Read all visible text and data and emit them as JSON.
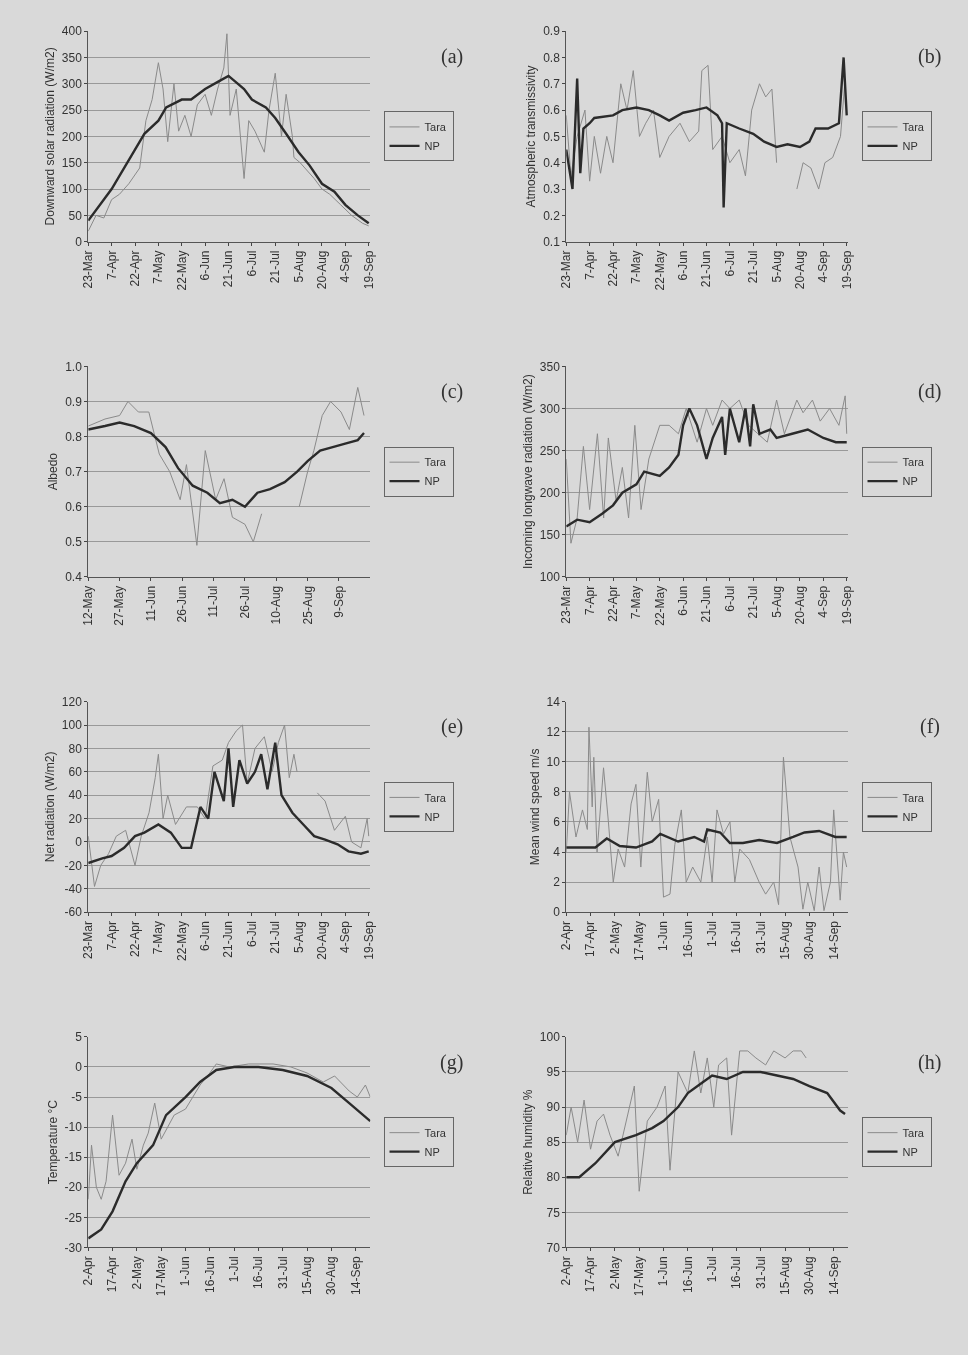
{
  "chart_data": [
    {
      "type": "line",
      "ylabel": "Downward solar radiation (W/m2)",
      "annotations": [
        "(a)"
      ],
      "legend": "right",
      "grid": "y",
      "xlim": [
        "--03-23",
        "--09-20"
      ],
      "ylim": [
        0,
        400
      ],
      "yticks": [
        0,
        50,
        100,
        150,
        200,
        250,
        300,
        350,
        400
      ],
      "xticks": [
        {
          "value": "--03-23",
          "label": "23-Mar"
        },
        {
          "value": "--04-07",
          "label": "7-Apr"
        },
        {
          "value": "--04-22",
          "label": "22-Apr"
        },
        {
          "value": "--05-07",
          "label": "7-May"
        },
        {
          "value": "--05-22",
          "label": "22-May"
        },
        {
          "value": "--06-06",
          "label": "6-Jun"
        },
        {
          "value": "--06-21",
          "label": "21-Jun"
        },
        {
          "value": "--07-06",
          "label": "6-Jul"
        },
        {
          "value": "--07-21",
          "label": "21-Jul"
        },
        {
          "value": "--08-05",
          "label": "5-Aug"
        },
        {
          "value": "--08-20",
          "label": "20-Aug"
        },
        {
          "value": "--09-04",
          "label": "4-Sep"
        },
        {
          "value": "--09-19",
          "label": "19-Sep"
        }
      ],
      "series": [
        {
          "name": "Tara",
          "color": "#8a8a8a",
          "x": [
            "--03-23",
            "--03-28",
            "--04-02",
            "--04-07",
            "--04-12",
            "--04-18",
            "--04-25",
            "--04-29",
            "--05-03",
            "--05-07",
            "--05-10",
            "--05-13",
            "--05-17",
            "--05-20",
            "--05-24",
            "--05-28",
            "--06-01",
            "--06-06",
            "--06-10",
            "--06-14",
            "--06-18",
            "--06-20",
            "--06-22",
            "--06-26",
            "--07-01",
            "--07-04",
            "--07-08",
            "--07-14",
            "--07-17",
            "--07-21",
            "--07-25",
            "--07-28",
            "--08-01",
            "--08-02",
            "--08-06",
            "--08-15",
            "--08-20",
            "--08-25",
            "--09-01",
            "--09-08",
            "--09-15",
            "--09-19"
          ],
          "values": [
            20,
            50,
            45,
            80,
            90,
            110,
            140,
            230,
            270,
            340,
            290,
            190,
            300,
            210,
            240,
            200,
            260,
            280,
            240,
            290,
            330,
            395,
            240,
            290,
            120,
            230,
            210,
            170,
            250,
            320,
            200,
            280,
            200,
            160,
            150,
            120,
            100,
            90,
            70,
            50,
            35,
            30
          ]
        },
        {
          "name": "NP",
          "color": "#2b2b2b",
          "x": [
            "--03-23",
            "--04-07",
            "--04-22",
            "--04-28",
            "--05-07",
            "--05-12",
            "--05-22",
            "--05-28",
            "--06-06",
            "--06-15",
            "--06-21",
            "--06-25",
            "--07-01",
            "--07-06",
            "--07-15",
            "--07-21",
            "--07-28",
            "--08-05",
            "--08-12",
            "--08-20",
            "--08-28",
            "--09-04",
            "--09-12",
            "--09-19"
          ],
          "values": [
            40,
            100,
            175,
            205,
            230,
            255,
            270,
            270,
            290,
            305,
            315,
            305,
            290,
            270,
            255,
            235,
            205,
            170,
            145,
            110,
            95,
            70,
            50,
            35
          ]
        }
      ]
    },
    {
      "type": "line",
      "ylabel": "Atmospheric transmissivity",
      "annotations": [
        "(b)"
      ],
      "legend": "right",
      "grid": false,
      "xlim": [
        "--03-23",
        "--09-20"
      ],
      "ylim": [
        0.1,
        0.9
      ],
      "yticks": [
        0.1,
        0.2,
        0.3,
        0.4,
        0.5,
        0.6,
        0.7,
        0.8,
        0.9
      ],
      "xticks": [
        {
          "value": "--03-23",
          "label": "23-Mar"
        },
        {
          "value": "--04-07",
          "label": "7-Apr"
        },
        {
          "value": "--04-22",
          "label": "22-Apr"
        },
        {
          "value": "--05-07",
          "label": "7-May"
        },
        {
          "value": "--05-22",
          "label": "22-May"
        },
        {
          "value": "--06-06",
          "label": "6-Jun"
        },
        {
          "value": "--06-21",
          "label": "21-Jun"
        },
        {
          "value": "--07-06",
          "label": "6-Jul"
        },
        {
          "value": "--07-21",
          "label": "21-Jul"
        },
        {
          "value": "--08-05",
          "label": "5-Aug"
        },
        {
          "value": "--08-20",
          "label": "20-Aug"
        },
        {
          "value": "--09-04",
          "label": "4-Sep"
        },
        {
          "value": "--09-19",
          "label": "19-Sep"
        }
      ],
      "series": [
        {
          "name": "Tara",
          "color": "#8a8a8a",
          "x": [
            "--03-23",
            "--03-26",
            "--03-30",
            "--04-04",
            "--04-07",
            "--04-10",
            "--04-14",
            "--04-18",
            "--04-22",
            "--04-27",
            "--05-01",
            "--05-05",
            "--05-09",
            "--05-13",
            "--05-18",
            "--05-22",
            "--05-28",
            "--06-04",
            "--06-10",
            "--06-16",
            "--06-18",
            "--06-22",
            "--06-25",
            "--07-01",
            "--07-06",
            "--07-12",
            "--07-16",
            "--07-20",
            "--07-25",
            "--07-29",
            "--08-02",
            "--08-05",
            "--08-10",
            "--08-18",
            "--08-22",
            "--08-27",
            "--09-01",
            "--09-05",
            "--09-10",
            "--09-15",
            "--09-18"
          ],
          "values": [
            0.58,
            0.35,
            0.5,
            0.6,
            0.33,
            0.5,
            0.36,
            0.5,
            0.4,
            0.7,
            0.6,
            0.75,
            0.5,
            0.55,
            0.6,
            0.42,
            0.5,
            0.55,
            0.48,
            0.52,
            0.75,
            0.77,
            0.45,
            0.5,
            0.4,
            0.45,
            0.35,
            0.6,
            0.7,
            0.65,
            0.68,
            0.4,
            null,
            0.3,
            0.4,
            0.38,
            0.3,
            0.4,
            0.42,
            0.5,
            0.72
          ]
        },
        {
          "name": "NP",
          "color": "#2b2b2b",
          "x": [
            "--03-23",
            "--03-27",
            "--03-30",
            "--04-01",
            "--04-03",
            "--04-07",
            "--04-10",
            "--04-22",
            "--04-28",
            "--05-07",
            "--05-15",
            "--05-22",
            "--05-28",
            "--06-06",
            "--06-14",
            "--06-21",
            "--06-28",
            "--07-01",
            "--07-02",
            "--07-04",
            "--07-12",
            "--07-21",
            "--07-28",
            "--08-05",
            "--08-12",
            "--08-20",
            "--08-26",
            "--08-30",
            "--09-07",
            "--09-14",
            "--09-17",
            "--09-19"
          ],
          "values": [
            0.45,
            0.3,
            0.72,
            0.36,
            0.53,
            0.55,
            0.57,
            0.58,
            0.6,
            0.61,
            0.6,
            0.58,
            0.56,
            0.59,
            0.6,
            0.61,
            0.58,
            0.55,
            0.23,
            0.55,
            0.53,
            0.51,
            0.48,
            0.46,
            0.47,
            0.46,
            0.48,
            0.53,
            0.53,
            0.55,
            0.8,
            0.58
          ]
        }
      ]
    },
    {
      "type": "line",
      "ylabel": "Albedo",
      "annotations": [
        "(c)"
      ],
      "legend": "right",
      "grid": "y",
      "xlim": [
        "--05-12",
        "--09-24"
      ],
      "ylim": [
        0.4,
        1.0
      ],
      "yticks": [
        0.4,
        0.5,
        0.6,
        0.7,
        0.8,
        0.9,
        {
          "value": 1.0,
          "label": "1.0"
        }
      ],
      "xticks": [
        {
          "value": "--05-12",
          "label": "12-May"
        },
        {
          "value": "--05-27",
          "label": "27-May"
        },
        {
          "value": "--06-11",
          "label": "11-Jun"
        },
        {
          "value": "--06-26",
          "label": "26-Jun"
        },
        {
          "value": "--07-11",
          "label": "11-Jul"
        },
        {
          "value": "--07-26",
          "label": "26-Jul"
        },
        {
          "value": "--08-10",
          "label": "10-Aug"
        },
        {
          "value": "--08-25",
          "label": "25-Aug"
        },
        {
          "value": "--09-09",
          "label": "9-Sep"
        }
      ],
      "series": [
        {
          "name": "Tara",
          "color": "#8a8a8a",
          "x": [
            "--05-12",
            "--05-20",
            "--05-27",
            "--05-31",
            "--06-05",
            "--06-10",
            "--06-15",
            "--06-20",
            "--06-25",
            "--06-28",
            "--07-03",
            "--07-07",
            "--07-12",
            "--07-16",
            "--07-20",
            "--07-26",
            "--07-30",
            "--08-03",
            "--08-10",
            "--08-21",
            "--08-25",
            "--08-28",
            "--09-01",
            "--09-05",
            "--09-10",
            "--09-14",
            "--09-18",
            "--09-21"
          ],
          "values": [
            0.83,
            0.85,
            0.86,
            0.9,
            0.87,
            0.87,
            0.75,
            0.7,
            0.62,
            0.72,
            0.49,
            0.76,
            0.62,
            0.68,
            0.57,
            0.55,
            0.5,
            0.58,
            null,
            0.6,
            0.7,
            0.76,
            0.86,
            0.9,
            0.87,
            0.82,
            0.94,
            0.86
          ]
        },
        {
          "name": "NP",
          "color": "#2b2b2b",
          "x": [
            "--05-12",
            "--05-20",
            "--05-27",
            "--06-03",
            "--06-11",
            "--06-18",
            "--06-24",
            "--07-01",
            "--07-08",
            "--07-14",
            "--07-20",
            "--07-26",
            "--08-01",
            "--08-07",
            "--08-14",
            "--08-20",
            "--08-25",
            "--08-31",
            "--09-06",
            "--09-12",
            "--09-18",
            "--09-21"
          ],
          "values": [
            0.82,
            0.83,
            0.84,
            0.83,
            0.81,
            0.77,
            0.71,
            0.66,
            0.64,
            0.61,
            0.62,
            0.6,
            0.64,
            0.65,
            0.67,
            0.7,
            0.73,
            0.76,
            0.77,
            0.78,
            0.79,
            0.81
          ]
        }
      ]
    },
    {
      "type": "line",
      "ylabel": "Incoming longwave radiation (W/m2)",
      "annotations": [
        "(d)"
      ],
      "legend": "right",
      "grid": "y",
      "xlim": [
        "--03-23",
        "--09-20"
      ],
      "ylim": [
        100,
        350
      ],
      "yticks": [
        100,
        150,
        200,
        250,
        300,
        350
      ],
      "xticks": [
        {
          "value": "--03-23",
          "label": "23-Mar"
        },
        {
          "value": "--04-07",
          "label": "7-Apr"
        },
        {
          "value": "--04-22",
          "label": "22-Apr"
        },
        {
          "value": "--05-07",
          "label": "7-May"
        },
        {
          "value": "--05-22",
          "label": "22-May"
        },
        {
          "value": "--06-06",
          "label": "6-Jun"
        },
        {
          "value": "--06-21",
          "label": "21-Jun"
        },
        {
          "value": "--07-06",
          "label": "6-Jul"
        },
        {
          "value": "--07-21",
          "label": "21-Jul"
        },
        {
          "value": "--08-05",
          "label": "5-Aug"
        },
        {
          "value": "--08-20",
          "label": "20-Aug"
        },
        {
          "value": "--09-04",
          "label": "4-Sep"
        },
        {
          "value": "--09-19",
          "label": "19-Sep"
        }
      ],
      "series": [
        {
          "name": "Tara",
          "color": "#8a8a8a",
          "x": [
            "--03-23",
            "--03-26",
            "--03-30",
            "--04-03",
            "--04-07",
            "--04-12",
            "--04-16",
            "--04-19",
            "--04-24",
            "--04-28",
            "--05-02",
            "--05-06",
            "--05-10",
            "--05-15",
            "--05-22",
            "--05-28",
            "--06-03",
            "--06-08",
            "--06-15",
            "--06-21",
            "--06-25",
            "--07-01",
            "--07-06",
            "--07-12",
            "--07-18",
            "--07-24",
            "--07-30",
            "--08-05",
            "--08-10",
            "--08-18",
            "--08-22",
            "--08-28",
            "--09-02",
            "--09-08",
            "--09-14",
            "--09-18",
            "--09-19"
          ],
          "values": [
            240,
            140,
            170,
            255,
            180,
            270,
            170,
            265,
            190,
            230,
            170,
            280,
            180,
            240,
            280,
            280,
            270,
            300,
            260,
            300,
            280,
            310,
            300,
            310,
            280,
            270,
            260,
            310,
            270,
            310,
            295,
            310,
            285,
            300,
            280,
            315,
            270
          ]
        },
        {
          "name": "NP",
          "color": "#2b2b2b",
          "x": [
            "--03-23",
            "--03-30",
            "--04-07",
            "--04-15",
            "--04-22",
            "--04-28",
            "--05-07",
            "--05-12",
            "--05-22",
            "--05-28",
            "--06-03",
            "--06-06",
            "--06-10",
            "--06-15",
            "--06-21",
            "--06-25",
            "--07-01",
            "--07-03",
            "--07-06",
            "--07-12",
            "--07-16",
            "--07-19",
            "--07-21",
            "--07-25",
            "--08-01",
            "--08-05",
            "--08-15",
            "--08-25",
            "--09-04",
            "--09-12",
            "--09-19"
          ],
          "values": [
            160,
            168,
            165,
            175,
            185,
            200,
            210,
            225,
            220,
            230,
            245,
            280,
            300,
            280,
            240,
            265,
            290,
            245,
            300,
            260,
            300,
            255,
            305,
            270,
            275,
            265,
            270,
            275,
            265,
            260,
            260
          ]
        }
      ]
    },
    {
      "type": "line",
      "ylabel": "Net radiation (W/m2)",
      "annotations": [
        "(e)"
      ],
      "legend": "right",
      "grid": "y",
      "xlim": [
        "--03-23",
        "--09-20"
      ],
      "ylim": [
        -60,
        120
      ],
      "yticks": [
        -60,
        -40,
        -20,
        0,
        20,
        40,
        60,
        80,
        100,
        120
      ],
      "xticks": [
        {
          "value": "--03-23",
          "label": "23-Mar"
        },
        {
          "value": "--04-07",
          "label": "7-Apr"
        },
        {
          "value": "--04-22",
          "label": "22-Apr"
        },
        {
          "value": "--05-07",
          "label": "7-May"
        },
        {
          "value": "--05-22",
          "label": "22-May"
        },
        {
          "value": "--06-06",
          "label": "6-Jun"
        },
        {
          "value": "--06-21",
          "label": "21-Jun"
        },
        {
          "value": "--07-06",
          "label": "6-Jul"
        },
        {
          "value": "--07-21",
          "label": "21-Jul"
        },
        {
          "value": "--08-05",
          "label": "5-Aug"
        },
        {
          "value": "--08-20",
          "label": "20-Aug"
        },
        {
          "value": "--09-04",
          "label": "4-Sep"
        },
        {
          "value": "--09-19",
          "label": "19-Sep"
        }
      ],
      "series": [
        {
          "name": "Tara",
          "color": "#8a8a8a",
          "x": [
            "--03-23",
            "--03-27",
            "--03-31",
            "--04-05",
            "--04-10",
            "--04-16",
            "--04-22",
            "--04-26",
            "--05-01",
            "--05-05",
            "--05-07",
            "--05-10",
            "--05-13",
            "--05-18",
            "--05-25",
            "--06-01",
            "--06-06",
            "--06-11",
            "--06-17",
            "--06-21",
            "--06-26",
            "--06-30",
            "--07-03",
            "--07-08",
            "--07-14",
            "--07-19",
            "--07-23",
            "--07-27",
            "--07-30",
            "--08-02",
            "--08-04",
            "--08-10",
            "--08-17",
            "--08-22",
            "--08-28",
            "--09-04",
            "--09-08",
            "--09-14",
            "--09-18",
            "--09-19"
          ],
          "values": [
            5,
            -38,
            -20,
            -10,
            5,
            10,
            -20,
            5,
            25,
            55,
            75,
            20,
            40,
            15,
            30,
            30,
            20,
            65,
            70,
            85,
            95,
            100,
            50,
            80,
            90,
            60,
            85,
            100,
            55,
            75,
            60,
            null,
            42,
            35,
            10,
            22,
            0,
            -5,
            20,
            5
          ]
        },
        {
          "name": "NP",
          "color": "#2b2b2b",
          "x": [
            "--03-23",
            "--04-01",
            "--04-07",
            "--04-15",
            "--04-22",
            "--04-28",
            "--05-07",
            "--05-15",
            "--05-22",
            "--05-28",
            "--06-03",
            "--06-08",
            "--06-12",
            "--06-18",
            "--06-21",
            "--06-24",
            "--06-28",
            "--07-03",
            "--07-08",
            "--07-12",
            "--07-16",
            "--07-21",
            "--07-25",
            "--08-01",
            "--08-08",
            "--08-15",
            "--08-22",
            "--08-30",
            "--09-06",
            "--09-14",
            "--09-19"
          ],
          "values": [
            -18,
            -14,
            -12,
            -5,
            5,
            8,
            15,
            8,
            -5,
            -5,
            30,
            20,
            60,
            35,
            80,
            30,
            70,
            50,
            60,
            75,
            45,
            85,
            40,
            25,
            15,
            5,
            2,
            -2,
            -8,
            -10,
            -8
          ]
        }
      ]
    },
    {
      "type": "line",
      "ylabel": "Mean wind speed m/s",
      "annotations": [
        "(f)"
      ],
      "legend": "right",
      "grid": "y",
      "xlim": [
        "--04-02",
        "--09-23"
      ],
      "ylim": [
        0,
        14
      ],
      "yticks": [
        0,
        2,
        4,
        6,
        8,
        10,
        12,
        14
      ],
      "xticks": [
        {
          "value": "--04-02",
          "label": "2-Apr"
        },
        {
          "value": "--04-17",
          "label": "17-Apr"
        },
        {
          "value": "--05-02",
          "label": "2-May"
        },
        {
          "value": "--05-17",
          "label": "17-May"
        },
        {
          "value": "--06-01",
          "label": "1-Jun"
        },
        {
          "value": "--06-16",
          "label": "16-Jun"
        },
        {
          "value": "--07-01",
          "label": "1-Jul"
        },
        {
          "value": "--07-16",
          "label": "16-Jul"
        },
        {
          "value": "--07-31",
          "label": "31-Jul"
        },
        {
          "value": "--08-15",
          "label": "15-Aug"
        },
        {
          "value": "--08-30",
          "label": "30-Aug"
        },
        {
          "value": "--09-14",
          "label": "14-Sep"
        }
      ],
      "series": [
        {
          "name": "Tara",
          "color": "#8a8a8a",
          "x": [
            "--04-02",
            "--04-04",
            "--04-08",
            "--04-12",
            "--04-15",
            "--04-16",
            "--04-18",
            "--04-19",
            "--04-21",
            "--04-25",
            "--04-28",
            "--05-01",
            "--05-04",
            "--05-08",
            "--05-12",
            "--05-15",
            "--05-18",
            "--05-22",
            "--05-25",
            "--05-29",
            "--06-01",
            "--06-05",
            "--06-08",
            "--06-12",
            "--06-15",
            "--06-19",
            "--06-24",
            "--06-28",
            "--07-01",
            "--07-04",
            "--07-08",
            "--07-12",
            "--07-15",
            "--07-18",
            "--07-24",
            "--07-30",
            "--08-03",
            "--08-08",
            "--08-11",
            "--08-14",
            "--08-18",
            "--08-23",
            "--08-26",
            "--08-29",
            "--09-02",
            "--09-05",
            "--09-08",
            "--09-12",
            "--09-14",
            "--09-18",
            "--09-20",
            "--09-22"
          ],
          "values": [
            4.0,
            8,
            5,
            6.8,
            5.5,
            12.3,
            7,
            10.3,
            4,
            9.6,
            6,
            2,
            4.2,
            3,
            7.2,
            8.5,
            3,
            9.3,
            6,
            7.5,
            1,
            1.2,
            4.5,
            6.8,
            2,
            3,
            2,
            5,
            2,
            6.8,
            5.2,
            6,
            2,
            4.2,
            3.5,
            2,
            1.2,
            2,
            0.5,
            10.3,
            5,
            3,
            0.2,
            2,
            0.1,
            3,
            0.1,
            2,
            6.8,
            0.8,
            4,
            3
          ]
        },
        {
          "name": "NP",
          "color": "#2b2b2b",
          "x": [
            "--04-02",
            "--04-20",
            "--04-27",
            "--05-05",
            "--05-15",
            "--05-25",
            "--05-30",
            "--06-10",
            "--06-20",
            "--06-26",
            "--06-28",
            "--07-06",
            "--07-12",
            "--07-20",
            "--07-30",
            "--08-10",
            "--08-20",
            "--08-27",
            "--09-05",
            "--09-15",
            "--09-22"
          ],
          "values": [
            4.3,
            4.3,
            4.9,
            4.4,
            4.3,
            4.7,
            5.2,
            4.7,
            5.0,
            4.7,
            5.5,
            5.3,
            4.6,
            4.6,
            4.8,
            4.6,
            5.0,
            5.3,
            5.4,
            5.0,
            5.0
          ]
        }
      ]
    },
    {
      "type": "line",
      "ylabel": "Temperature °C",
      "annotations": [
        "(g)"
      ],
      "legend": "right",
      "grid": "y",
      "xlim": [
        "--04-02",
        "--09-23"
      ],
      "ylim": [
        -30,
        5
      ],
      "yticks": [
        -30,
        -25,
        -20,
        -15,
        -10,
        -5,
        0,
        5
      ],
      "xticks": [
        {
          "value": "--04-02",
          "label": "2-Apr"
        },
        {
          "value": "--04-17",
          "label": "17-Apr"
        },
        {
          "value": "--05-02",
          "label": "2-May"
        },
        {
          "value": "--05-17",
          "label": "17-May"
        },
        {
          "value": "--06-01",
          "label": "1-Jun"
        },
        {
          "value": "--06-16",
          "label": "16-Jun"
        },
        {
          "value": "--07-01",
          "label": "1-Jul"
        },
        {
          "value": "--07-16",
          "label": "16-Jul"
        },
        {
          "value": "--07-31",
          "label": "31-Jul"
        },
        {
          "value": "--08-15",
          "label": "15-Aug"
        },
        {
          "value": "--08-30",
          "label": "30-Aug"
        },
        {
          "value": "--09-14",
          "label": "14-Sep"
        }
      ],
      "series": [
        {
          "name": "Tara",
          "color": "#8a8a8a",
          "x": [
            "--04-02",
            "--04-04",
            "--04-07",
            "--04-10",
            "--04-13",
            "--04-17",
            "--04-21",
            "--04-25",
            "--04-29",
            "--05-02",
            "--05-06",
            "--05-09",
            "--05-13",
            "--05-17",
            "--05-25",
            "--06-01",
            "--06-10",
            "--06-16",
            "--06-20",
            "--06-28",
            "--07-10",
            "--07-25",
            "--08-05",
            "--08-15",
            "--08-25",
            "--09-01",
            "--09-10",
            "--09-15",
            "--09-20",
            "--09-23"
          ],
          "values": [
            -22,
            -13,
            -20,
            -22,
            -19,
            -8,
            -18,
            -16,
            -12,
            -17,
            -13,
            -11,
            -6,
            -12,
            -8,
            -7,
            -3,
            -1,
            0.5,
            0,
            0.5,
            0.5,
            0,
            -1,
            -2.5,
            -1.5,
            -4,
            -5,
            -3,
            -5
          ]
        },
        {
          "name": "NP",
          "color": "#2b2b2b",
          "x": [
            "--04-02",
            "--04-10",
            "--04-17",
            "--04-25",
            "--05-02",
            "--05-12",
            "--05-20",
            "--06-01",
            "--06-10",
            "--06-20",
            "--07-01",
            "--07-16",
            "--07-31",
            "--08-15",
            "--08-30",
            "--09-10",
            "--09-23"
          ],
          "values": [
            -28.5,
            -27,
            -24,
            -19,
            -16,
            -13,
            -8,
            -5,
            -2.5,
            -0.5,
            0,
            0,
            -0.5,
            -1.5,
            -3.5,
            -6,
            -9
          ]
        }
      ]
    },
    {
      "type": "line",
      "ylabel": "Relative humidity %",
      "annotations": [
        "(h)"
      ],
      "legend": "right",
      "grid": "y",
      "xlim": [
        "--04-02",
        "--09-23"
      ],
      "ylim": [
        70,
        100
      ],
      "yticks": [
        70,
        75,
        80,
        85,
        90,
        95,
        100
      ],
      "xticks": [
        {
          "value": "--04-02",
          "label": "2-Apr"
        },
        {
          "value": "--04-17",
          "label": "17-Apr"
        },
        {
          "value": "--05-02",
          "label": "2-May"
        },
        {
          "value": "--05-17",
          "label": "17-May"
        },
        {
          "value": "--06-01",
          "label": "1-Jun"
        },
        {
          "value": "--06-16",
          "label": "16-Jun"
        },
        {
          "value": "--07-01",
          "label": "1-Jul"
        },
        {
          "value": "--07-16",
          "label": "16-Jul"
        },
        {
          "value": "--07-31",
          "label": "31-Jul"
        },
        {
          "value": "--08-15",
          "label": "15-Aug"
        },
        {
          "value": "--08-30",
          "label": "30-Aug"
        },
        {
          "value": "--09-14",
          "label": "14-Sep"
        }
      ],
      "series": [
        {
          "name": "Tara",
          "color": "#8a8a8a",
          "x": [
            "--04-02",
            "--04-05",
            "--04-09",
            "--04-13",
            "--04-17",
            "--04-21",
            "--04-25",
            "--04-29",
            "--05-04",
            "--05-10",
            "--05-14",
            "--05-17",
            "--05-22",
            "--05-28",
            "--06-02",
            "--06-05",
            "--06-10",
            "--06-16",
            "--06-20",
            "--06-24",
            "--06-28",
            "--07-02",
            "--07-05",
            "--07-10",
            "--07-13",
            "--07-18",
            "--07-23",
            "--07-28",
            "--08-03",
            "--08-08",
            "--08-15",
            "--08-20",
            "--08-25",
            "--08-28"
          ],
          "values": [
            86,
            90,
            85,
            91,
            84,
            88,
            89,
            86,
            83,
            89,
            93,
            78,
            88,
            90,
            93,
            81,
            95,
            92,
            98,
            92,
            97,
            90,
            96,
            97,
            86,
            98,
            98,
            97,
            96,
            98,
            97,
            98,
            98,
            97
          ]
        },
        {
          "name": "NP",
          "color": "#2b2b2b",
          "x": [
            "--04-02",
            "--04-10",
            "--04-20",
            "--05-02",
            "--05-15",
            "--05-25",
            "--06-01",
            "--06-10",
            "--06-16",
            "--06-25",
            "--07-01",
            "--07-10",
            "--07-20",
            "--07-31",
            "--08-10",
            "--08-20",
            "--08-30",
            "--09-10",
            "--09-18",
            "--09-21"
          ],
          "values": [
            80,
            80,
            82,
            85,
            86,
            87,
            88,
            90,
            92,
            93.5,
            94.5,
            94,
            95,
            95,
            94.5,
            94,
            93,
            92,
            89.5,
            89
          ]
        }
      ]
    }
  ]
}
